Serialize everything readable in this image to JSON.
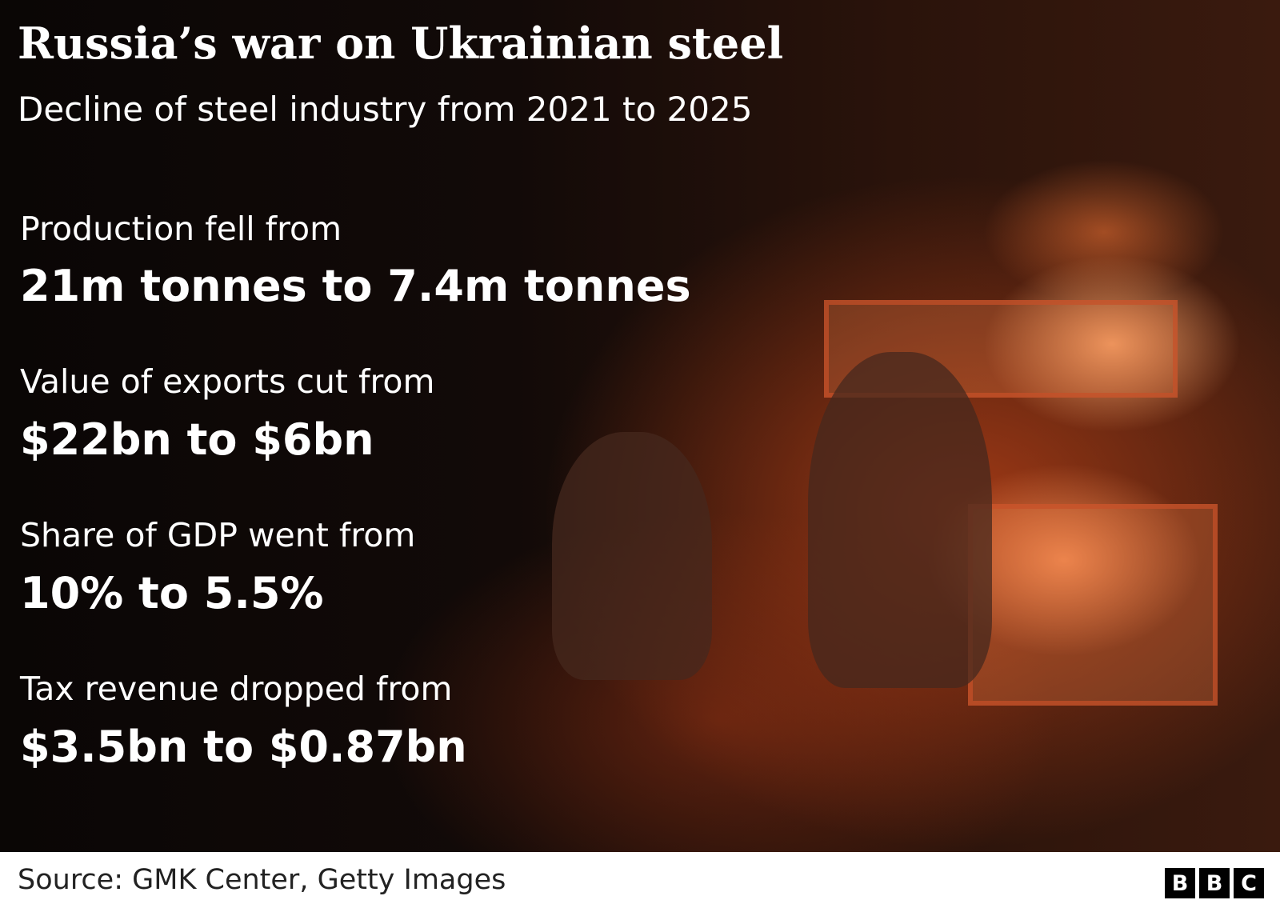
{
  "header": {
    "title": "Russia’s war on Ukrainian steel",
    "subtitle": "Decline of steel industry from 2021 to 2025"
  },
  "stats": [
    {
      "label": "Production fell from",
      "value": "21m tonnes to 7.4m tonnes"
    },
    {
      "label": "Value of exports cut from",
      "value": "$22bn to $6bn"
    },
    {
      "label": "Share of GDP went from",
      "value": "10% to 5.5%"
    },
    {
      "label": "Tax revenue dropped from",
      "value": "$3.5bn to $0.87bn"
    }
  ],
  "footer": {
    "source": "Source: GMK Center, Getty Images",
    "logo": [
      "B",
      "B",
      "C"
    ]
  }
}
